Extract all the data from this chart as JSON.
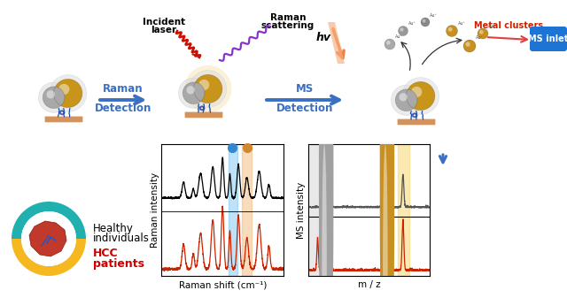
{
  "bg_color": "#ffffff",
  "arrow_blue": "#3a6fc4",
  "raman_xlabel": "Raman shift (cm⁻¹)",
  "raman_ylabel": "Raman intensity",
  "ms_xlabel": "m / z",
  "ms_ylabel": "MS intensity",
  "healthy_text": "Healthy\nindividuals",
  "hcc_text": "HCC\npatients",
  "incident_laser": "Incident\nlaser",
  "raman_scattering": "Raman\nscattering",
  "metal_clusters": "Metal clusters",
  "ms_inlet": "MS inlet",
  "hv": "hv",
  "raman_detect": [
    "Raman",
    "Detection"
  ],
  "ms_detect": [
    "MS",
    "Detection"
  ]
}
